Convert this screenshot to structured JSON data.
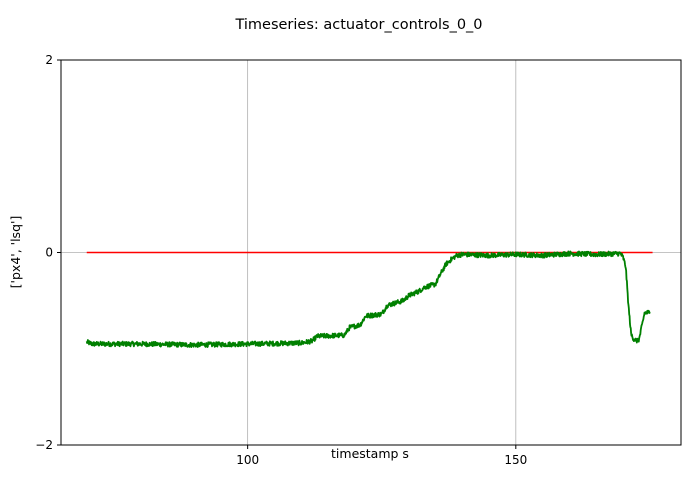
{
  "chart_data": {
    "type": "line",
    "title": "Timeseries: actuator_controls_0_0",
    "xlabel": "timestamp s",
    "ylabel": "['px4', 'lsq']",
    "xlim": [
      65.2,
      180.8
    ],
    "ylim": [
      -2,
      2
    ],
    "x_ticks": [
      100,
      150
    ],
    "y_ticks": [
      -2,
      0,
      2
    ],
    "x_tick_labels": [
      "100",
      "150"
    ],
    "y_tick_labels": [
      "−2",
      "0",
      "2"
    ],
    "grid": true,
    "legend": "none",
    "series": [
      {
        "color": "#ff0000",
        "line_width": 1.5,
        "noise": 0,
        "x": [
          70.0,
          175.5
        ],
        "y": [
          0.0,
          0.0
        ]
      },
      {
        "color": "#008000",
        "line_width": 1.8,
        "noise": 0.025,
        "x": [
          70.0,
          71.0,
          80.0,
          90.0,
          100.0,
          110.0,
          112.0,
          113.0,
          118.0,
          119.0,
          121.0,
          122.0,
          125.0,
          126.0,
          129.0,
          130.0,
          132.0,
          133.0,
          135.0,
          136.0,
          137.0,
          138.0,
          139.0,
          140.0,
          145.0,
          150.0,
          155.0,
          160.0,
          165.0,
          169.5,
          170.0,
          170.5,
          171.0,
          171.5,
          172.0,
          172.7,
          173.0,
          174.0,
          175.0
        ],
        "y": [
          -0.93,
          -0.95,
          -0.95,
          -0.96,
          -0.95,
          -0.94,
          -0.92,
          -0.87,
          -0.86,
          -0.78,
          -0.75,
          -0.66,
          -0.64,
          -0.55,
          -0.5,
          -0.45,
          -0.4,
          -0.36,
          -0.33,
          -0.22,
          -0.12,
          -0.07,
          -0.03,
          -0.02,
          -0.03,
          -0.02,
          -0.03,
          -0.01,
          -0.02,
          -0.01,
          -0.05,
          -0.15,
          -0.55,
          -0.85,
          -0.9,
          -0.92,
          -0.9,
          -0.63,
          -0.62
        ]
      }
    ]
  }
}
